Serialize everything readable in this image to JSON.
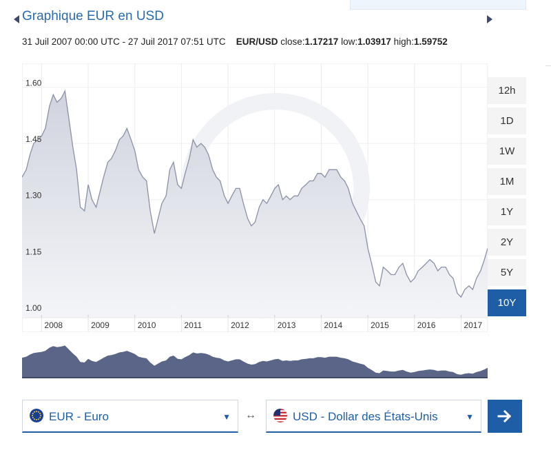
{
  "page": {
    "title": "Graphique EUR en USD",
    "date_range": "31 Juil 2007 00:00 UTC - 27 Juil 2017 07:51 UTC",
    "pair": "EUR/USD",
    "close_label": "close:",
    "close_value": "1.17217",
    "low_label": "low:",
    "low_value": "1.03917",
    "high_label": "high:",
    "high_value": "1.59752"
  },
  "range_buttons": [
    {
      "label": "12h",
      "active": false
    },
    {
      "label": "1D",
      "active": false
    },
    {
      "label": "1W",
      "active": false
    },
    {
      "label": "1M",
      "active": false
    },
    {
      "label": "1Y",
      "active": false
    },
    {
      "label": "2Y",
      "active": false
    },
    {
      "label": "5Y",
      "active": false
    },
    {
      "label": "10Y",
      "active": true
    }
  ],
  "converter": {
    "from_label": "EUR - Euro",
    "to_label": "USD - Dollar des États-Unis",
    "swap_symbol": "↔",
    "from_flag_icon": "eu-flag-icon",
    "to_flag_icon": "us-flag-icon",
    "go_icon": "arrow-right-icon"
  },
  "colors": {
    "accent": "#1d5ea7",
    "title": "#2a6ab0",
    "line": "#8a90a6",
    "area_top": "#d0d3de",
    "area_bottom": "#f4f5f8",
    "navigator_fill": "#5b6587"
  },
  "chart_data": {
    "type": "area",
    "xlim": [
      2007.58,
      2017.57
    ],
    "ylim": [
      0.985,
      1.66
    ],
    "yticks": [
      1.0,
      1.15,
      1.3,
      1.45,
      1.6
    ],
    "ytick_labels": [
      "1.00",
      "1.15",
      "1.30",
      "1.45",
      "1.60"
    ],
    "xticks": [
      2008,
      2009,
      2010,
      2011,
      2012,
      2013,
      2014,
      2015,
      2016,
      2017
    ],
    "xtick_labels": [
      "2008",
      "2009",
      "2010",
      "2011",
      "2012",
      "2013",
      "2014",
      "2015",
      "2016",
      "2017"
    ],
    "grid": true,
    "series": [
      {
        "x": [
          2007.58,
          2007.67,
          2007.75,
          2007.83,
          2007.92,
          2008.0,
          2008.08,
          2008.17,
          2008.25,
          2008.33,
          2008.42,
          2008.5,
          2008.58,
          2008.67,
          2008.75,
          2008.83,
          2008.92,
          2009.0,
          2009.08,
          2009.17,
          2009.25,
          2009.33,
          2009.42,
          2009.5,
          2009.58,
          2009.67,
          2009.75,
          2009.83,
          2009.92,
          2010.0,
          2010.08,
          2010.17,
          2010.25,
          2010.33,
          2010.42,
          2010.5,
          2010.58,
          2010.67,
          2010.75,
          2010.83,
          2010.92,
          2011.0,
          2011.08,
          2011.17,
          2011.25,
          2011.33,
          2011.42,
          2011.5,
          2011.58,
          2011.67,
          2011.75,
          2011.83,
          2011.92,
          2012.0,
          2012.08,
          2012.17,
          2012.25,
          2012.33,
          2012.42,
          2012.5,
          2012.58,
          2012.67,
          2012.75,
          2012.83,
          2012.92,
          2013.0,
          2013.08,
          2013.17,
          2013.25,
          2013.33,
          2013.42,
          2013.5,
          2013.58,
          2013.67,
          2013.75,
          2013.83,
          2013.92,
          2014.0,
          2014.08,
          2014.17,
          2014.25,
          2014.33,
          2014.42,
          2014.5,
          2014.58,
          2014.67,
          2014.75,
          2014.83,
          2014.92,
          2015.0,
          2015.08,
          2015.17,
          2015.25,
          2015.33,
          2015.42,
          2015.5,
          2015.58,
          2015.67,
          2015.75,
          2015.83,
          2015.92,
          2016.0,
          2016.08,
          2016.17,
          2016.25,
          2016.33,
          2016.42,
          2016.5,
          2016.58,
          2016.67,
          2016.75,
          2016.83,
          2016.92,
          2017.0,
          2017.08,
          2017.17,
          2017.25,
          2017.33,
          2017.42,
          2017.5,
          2017.57
        ],
        "y": [
          1.36,
          1.38,
          1.42,
          1.45,
          1.46,
          1.47,
          1.49,
          1.55,
          1.58,
          1.56,
          1.57,
          1.59,
          1.52,
          1.44,
          1.38,
          1.28,
          1.27,
          1.34,
          1.3,
          1.28,
          1.32,
          1.36,
          1.4,
          1.41,
          1.43,
          1.46,
          1.47,
          1.49,
          1.46,
          1.43,
          1.38,
          1.36,
          1.35,
          1.27,
          1.21,
          1.25,
          1.29,
          1.31,
          1.38,
          1.4,
          1.34,
          1.33,
          1.37,
          1.41,
          1.46,
          1.44,
          1.45,
          1.44,
          1.42,
          1.38,
          1.36,
          1.35,
          1.31,
          1.29,
          1.31,
          1.33,
          1.33,
          1.29,
          1.25,
          1.23,
          1.24,
          1.28,
          1.3,
          1.29,
          1.31,
          1.33,
          1.34,
          1.3,
          1.31,
          1.3,
          1.31,
          1.31,
          1.33,
          1.34,
          1.35,
          1.35,
          1.37,
          1.37,
          1.36,
          1.38,
          1.38,
          1.38,
          1.36,
          1.35,
          1.33,
          1.29,
          1.27,
          1.25,
          1.23,
          1.17,
          1.13,
          1.08,
          1.07,
          1.12,
          1.11,
          1.1,
          1.1,
          1.12,
          1.13,
          1.1,
          1.08,
          1.09,
          1.11,
          1.12,
          1.13,
          1.14,
          1.13,
          1.11,
          1.12,
          1.12,
          1.1,
          1.09,
          1.05,
          1.04,
          1.06,
          1.07,
          1.06,
          1.09,
          1.11,
          1.14,
          1.17
        ]
      }
    ]
  }
}
